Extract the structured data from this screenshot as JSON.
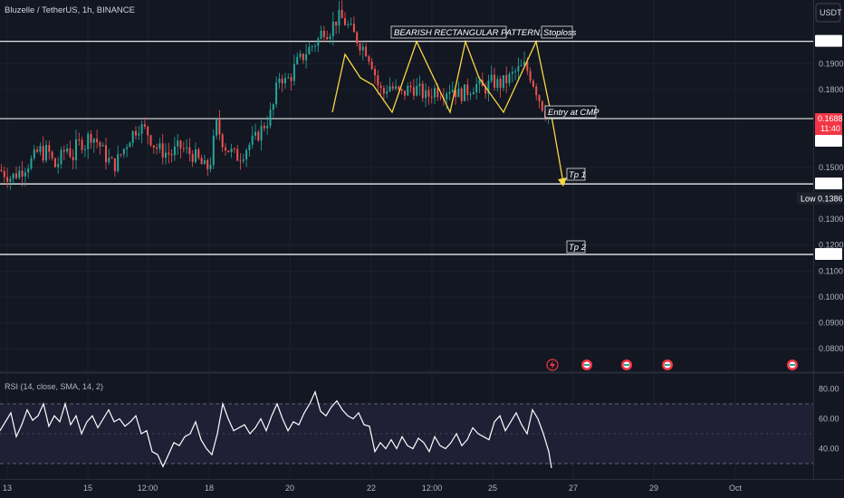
{
  "header": {
    "symbol": "Bluzelle / TetherUS, 1h, BINANCE"
  },
  "currency_button": "USDT",
  "chart_data": {
    "type": "candlestick",
    "symbol": "Bluzelle / TetherUS",
    "interval": "1h",
    "exchange": "BINANCE",
    "price_axis": {
      "ticks": [
        "0.1900",
        "0.1800",
        "0.1500",
        "0.1300",
        "0.1200",
        "0.1100",
        "0.1000",
        "0.0900",
        "0.0800"
      ],
      "range": [
        0.075,
        0.2
      ]
    },
    "time_axis": {
      "labels": [
        "13",
        "15",
        "12:00",
        "18",
        "20",
        "22",
        "12:00",
        "25",
        "27",
        "29",
        "Oct"
      ]
    },
    "horizontal_levels": [
      {
        "price": 0.1986,
        "label": "0.1986"
      },
      {
        "price": 0.1688,
        "label": "0.1688"
      },
      {
        "price": 0.1436,
        "label": "0.1436"
      },
      {
        "price": 0.1164,
        "label": "0.1164"
      }
    ],
    "last_price": {
      "value": "0.1688",
      "countdown": "11:40",
      "value2": "0.1688"
    },
    "low": {
      "label": "Low",
      "value": "0.1386"
    },
    "annotations": [
      {
        "text": "BEARISH RECTANGULAR PATTERN."
      },
      {
        "text": "Stoploss"
      },
      {
        "text": "Entry at CMP"
      },
      {
        "text": "Tp 1"
      },
      {
        "text": "Tp 2"
      }
    ],
    "price_path": [
      [
        0,
        0.149
      ],
      [
        8,
        0.146
      ],
      [
        16,
        0.149
      ],
      [
        24,
        0.153
      ],
      [
        29,
        0.157
      ],
      [
        32,
        0.155
      ],
      [
        35,
        0.157
      ],
      [
        38,
        0.153
      ],
      [
        41,
        0.15
      ],
      [
        44,
        0.153
      ],
      [
        47,
        0.156
      ],
      [
        50,
        0.158
      ],
      [
        52,
        0.155
      ],
      [
        54,
        0.154
      ],
      [
        56,
        0.158
      ],
      [
        58,
        0.159
      ],
      [
        60,
        0.16
      ],
      [
        62,
        0.158
      ],
      [
        66,
        0.163
      ],
      [
        70,
        0.161
      ],
      [
        74,
        0.158
      ],
      [
        78,
        0.154
      ],
      [
        84,
        0.1505
      ],
      [
        90,
        0.156
      ],
      [
        96,
        0.162
      ],
      [
        102,
        0.166
      ],
      [
        108,
        0.164
      ],
      [
        114,
        0.158
      ],
      [
        120,
        0.156
      ],
      [
        126,
        0.155
      ],
      [
        132,
        0.158
      ],
      [
        138,
        0.156
      ],
      [
        144,
        0.154
      ],
      [
        150,
        0.15
      ],
      [
        154,
        0.15
      ],
      [
        156,
        0.155
      ],
      [
        158,
        0.163
      ],
      [
        160,
        0.168
      ],
      [
        162,
        0.162
      ],
      [
        166,
        0.158
      ],
      [
        170,
        0.156
      ],
      [
        174,
        0.154
      ],
      [
        178,
        0.155
      ],
      [
        182,
        0.158
      ],
      [
        188,
        0.161
      ],
      [
        194,
        0.166
      ],
      [
        198,
        0.169
      ],
      [
        202,
        0.175
      ],
      [
        204,
        0.182
      ],
      [
        206,
        0.186
      ],
      [
        210,
        0.183
      ],
      [
        214,
        0.185
      ],
      [
        218,
        0.19
      ],
      [
        222,
        0.192
      ],
      [
        226,
        0.195
      ],
      [
        230,
        0.197
      ],
      [
        234,
        0.199
      ],
      [
        238,
        0.2035
      ],
      [
        242,
        0.202
      ],
      [
        246,
        0.206
      ],
      [
        250,
        0.208
      ],
      [
        254,
        0.206
      ],
      [
        258,
        0.203
      ],
      [
        262,
        0.2
      ],
      [
        266,
        0.197
      ],
      [
        270,
        0.195
      ],
      [
        274,
        0.19
      ],
      [
        278,
        0.182
      ],
      [
        282,
        0.178
      ],
      [
        286,
        0.182
      ],
      [
        290,
        0.18
      ],
      [
        296,
        0.178
      ],
      [
        302,
        0.181
      ],
      [
        308,
        0.18
      ],
      [
        314,
        0.177
      ],
      [
        320,
        0.18
      ],
      [
        326,
        0.179
      ],
      [
        332,
        0.181
      ],
      [
        338,
        0.178
      ],
      [
        344,
        0.1795
      ],
      [
        350,
        0.182
      ],
      [
        356,
        0.18
      ],
      [
        362,
        0.183
      ],
      [
        368,
        0.182
      ],
      [
        374,
        0.184
      ],
      [
        380,
        0.187
      ],
      [
        386,
        0.189
      ],
      [
        390,
        0.186
      ],
      [
        394,
        0.181
      ],
      [
        398,
        0.175
      ],
      [
        402,
        0.171
      ],
      [
        406,
        0.1665
      ]
    ],
    "rsi": {
      "label": "RSI (14, close, SMA, 14, 2)",
      "ticks": [
        "80.00",
        "60.00",
        "40.00"
      ],
      "bands": [
        70,
        30
      ],
      "series": [
        [
          0,
          52
        ],
        [
          4,
          58
        ],
        [
          8,
          64
        ],
        [
          12,
          48
        ],
        [
          16,
          56
        ],
        [
          20,
          66
        ],
        [
          24,
          59
        ],
        [
          28,
          62
        ],
        [
          32,
          70
        ],
        [
          36,
          55
        ],
        [
          40,
          62
        ],
        [
          44,
          58
        ],
        [
          48,
          70
        ],
        [
          52,
          56
        ],
        [
          56,
          62
        ],
        [
          60,
          50
        ],
        [
          64,
          58
        ],
        [
          68,
          62
        ],
        [
          72,
          54
        ],
        [
          76,
          60
        ],
        [
          80,
          66
        ],
        [
          84,
          58
        ],
        [
          88,
          60
        ],
        [
          92,
          55
        ],
        [
          96,
          58
        ],
        [
          100,
          62
        ],
        [
          104,
          50
        ],
        [
          108,
          52
        ],
        [
          112,
          38
        ],
        [
          116,
          36
        ],
        [
          120,
          28
        ],
        [
          124,
          36
        ],
        [
          128,
          44
        ],
        [
          132,
          42
        ],
        [
          136,
          48
        ],
        [
          140,
          50
        ],
        [
          144,
          58
        ],
        [
          148,
          46
        ],
        [
          152,
          40
        ],
        [
          156,
          36
        ],
        [
          160,
          50
        ],
        [
          164,
          70
        ],
        [
          168,
          60
        ],
        [
          172,
          52
        ],
        [
          176,
          54
        ],
        [
          180,
          56
        ],
        [
          184,
          50
        ],
        [
          188,
          54
        ],
        [
          192,
          60
        ],
        [
          196,
          52
        ],
        [
          200,
          62
        ],
        [
          204,
          70
        ],
        [
          208,
          60
        ],
        [
          212,
          52
        ],
        [
          216,
          58
        ],
        [
          220,
          56
        ],
        [
          224,
          64
        ],
        [
          228,
          70
        ],
        [
          232,
          78
        ],
        [
          236,
          65
        ],
        [
          240,
          62
        ],
        [
          244,
          68
        ],
        [
          248,
          72
        ],
        [
          252,
          66
        ],
        [
          256,
          62
        ],
        [
          260,
          60
        ],
        [
          264,
          64
        ],
        [
          268,
          56
        ],
        [
          272,
          55
        ],
        [
          276,
          38
        ],
        [
          280,
          44
        ],
        [
          284,
          40
        ],
        [
          288,
          46
        ],
        [
          292,
          40
        ],
        [
          296,
          48
        ],
        [
          300,
          42
        ],
        [
          304,
          40
        ],
        [
          308,
          47
        ],
        [
          312,
          44
        ],
        [
          316,
          38
        ],
        [
          320,
          48
        ],
        [
          324,
          42
        ],
        [
          328,
          40
        ],
        [
          332,
          44
        ],
        [
          336,
          50
        ],
        [
          340,
          42
        ],
        [
          344,
          46
        ],
        [
          348,
          54
        ],
        [
          352,
          50
        ],
        [
          356,
          48
        ],
        [
          360,
          46
        ],
        [
          364,
          58
        ],
        [
          368,
          62
        ],
        [
          372,
          52
        ],
        [
          376,
          58
        ],
        [
          380,
          64
        ],
        [
          384,
          56
        ],
        [
          388,
          50
        ],
        [
          392,
          66
        ],
        [
          396,
          60
        ],
        [
          400,
          50
        ],
        [
          404,
          38
        ],
        [
          406,
          27
        ]
      ]
    },
    "grid": true
  }
}
